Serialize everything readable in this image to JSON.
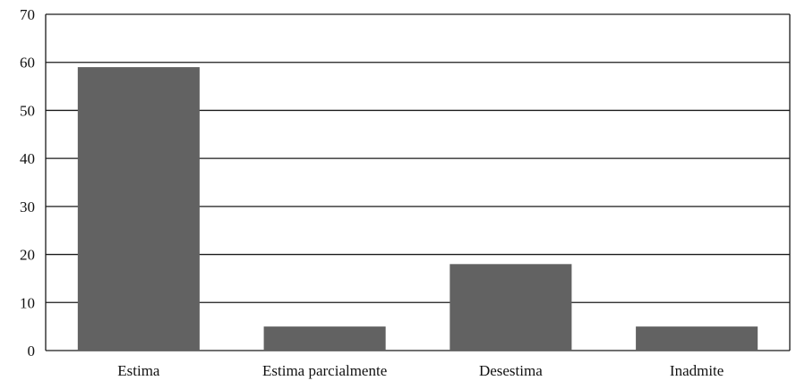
{
  "chart_data": {
    "type": "bar",
    "title": "",
    "xlabel": "",
    "ylabel": "",
    "categories": [
      "Estima",
      "Estima parcialmente",
      "Desestima",
      "Inadmite"
    ],
    "values": [
      59,
      5,
      18,
      5
    ],
    "ylim": [
      0,
      70
    ],
    "yticks": [
      "0",
      "10",
      "20",
      "30",
      "40",
      "50",
      "60",
      "70"
    ],
    "grid": true,
    "legend": "none",
    "bar_color": "#626262"
  }
}
